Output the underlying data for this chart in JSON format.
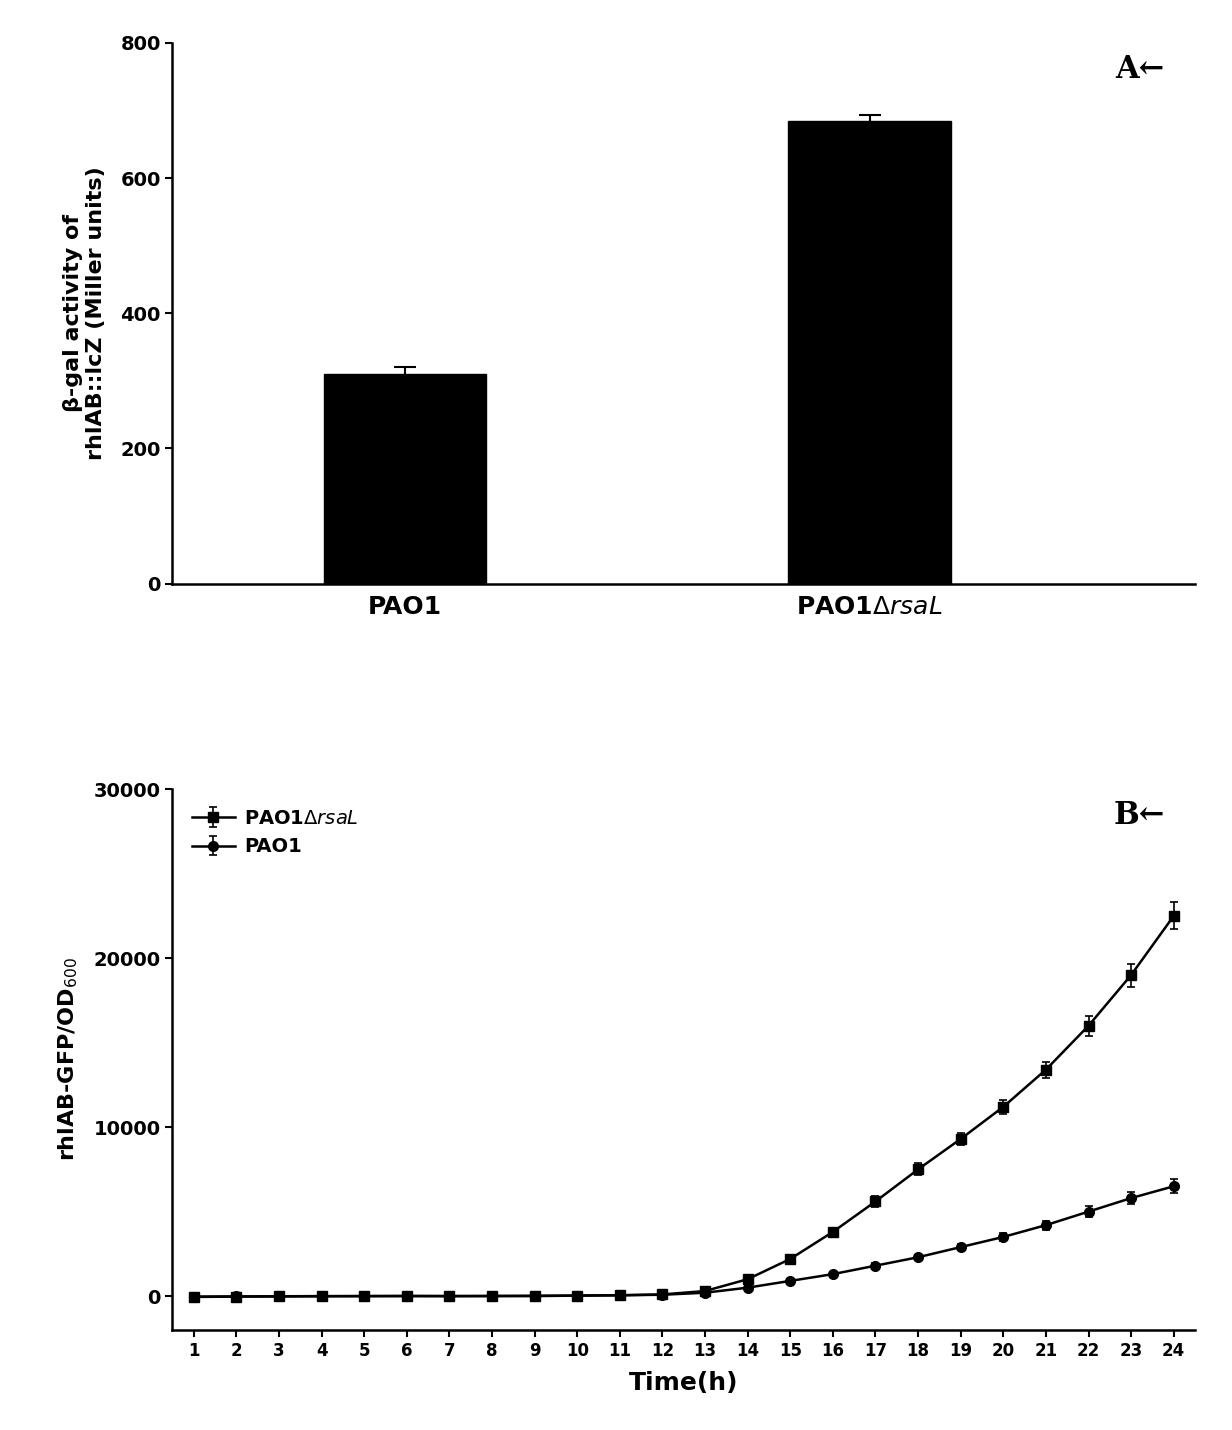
{
  "panel_A": {
    "categories": [
      "PAO1",
      "PAO1ΔrsaL"
    ],
    "values": [
      310,
      685
    ],
    "errors": [
      10,
      8
    ],
    "bar_color": "#000000",
    "bar_width": 0.35,
    "ylabel": "β-gal activity of\nrhlAB::lcZ (Miller units)",
    "ylim": [
      0,
      800
    ],
    "yticks": [
      0,
      200,
      400,
      600,
      800
    ],
    "label": "A←"
  },
  "panel_B": {
    "time": [
      1,
      2,
      3,
      4,
      5,
      6,
      7,
      8,
      9,
      10,
      11,
      12,
      13,
      14,
      15,
      16,
      17,
      18,
      19,
      20,
      21,
      22,
      23,
      24
    ],
    "rsaL_values": [
      -50,
      -30,
      -20,
      -10,
      0,
      10,
      0,
      0,
      0,
      30,
      50,
      100,
      300,
      1000,
      2200,
      3800,
      5600,
      7500,
      9300,
      11200,
      13400,
      16000,
      19000,
      22500
    ],
    "rsaL_errors": [
      30,
      30,
      30,
      30,
      30,
      30,
      30,
      30,
      30,
      30,
      50,
      60,
      80,
      150,
      200,
      250,
      300,
      350,
      380,
      420,
      480,
      580,
      680,
      800
    ],
    "pao1_values": [
      -30,
      -20,
      -10,
      0,
      0,
      0,
      0,
      10,
      20,
      30,
      50,
      80,
      200,
      500,
      900,
      1300,
      1800,
      2300,
      2900,
      3500,
      4200,
      5000,
      5800,
      6500
    ],
    "pao1_errors": [
      20,
      20,
      20,
      20,
      20,
      20,
      20,
      20,
      25,
      30,
      35,
      40,
      50,
      70,
      90,
      110,
      130,
      160,
      190,
      220,
      260,
      310,
      360,
      420
    ],
    "ylabel": "rhlAB-GFP/OD$_{600}$",
    "xlabel": "Time(h)",
    "ylim": [
      -2000,
      30000
    ],
    "yticks": [
      0,
      10000,
      20000,
      30000
    ],
    "xticks": [
      1,
      2,
      3,
      4,
      5,
      6,
      7,
      8,
      9,
      10,
      11,
      12,
      13,
      14,
      15,
      16,
      17,
      18,
      19,
      20,
      21,
      22,
      23,
      24
    ],
    "legend_rsaL": "PAO1ΔrsaL",
    "legend_pao1": "PAO1",
    "label": "B←",
    "line_color": "#000000"
  },
  "background_color": "#ffffff"
}
